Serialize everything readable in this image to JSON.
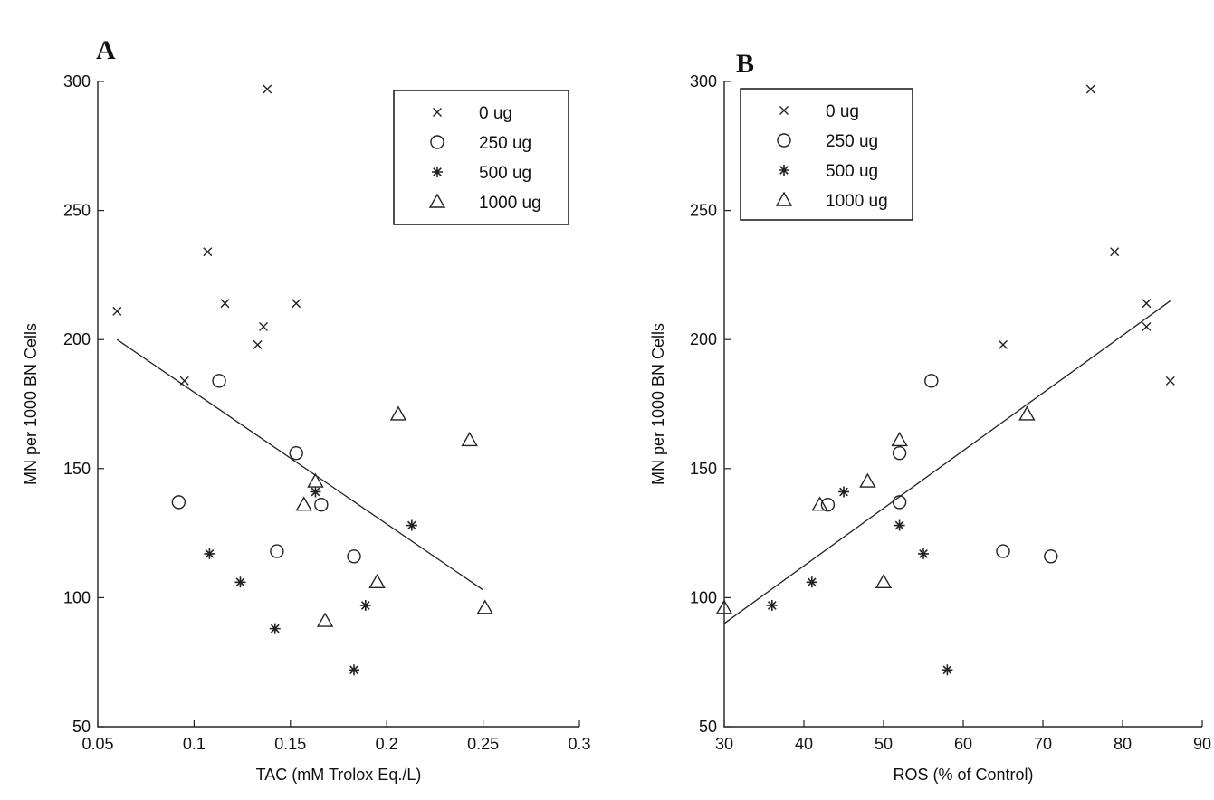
{
  "chart_data": [
    {
      "type": "scatter",
      "panel": "A",
      "xlabel": "TAC (mM Trolox Eq./L)",
      "ylabel": "MN per 1000 BN Cells",
      "xlim": [
        0.05,
        0.3
      ],
      "ylim": [
        50,
        300
      ],
      "xticks": [
        "0.05",
        "0.1",
        "0.15",
        "0.2",
        "0.25",
        "0.3"
      ],
      "yticks": [
        "50",
        "100",
        "150",
        "200",
        "250",
        "300"
      ],
      "grid": false,
      "legend_position": "top-right",
      "series": [
        {
          "name": "0 ug",
          "marker": "x",
          "x": [
            0.06,
            0.095,
            0.107,
            0.116,
            0.133,
            0.136,
            0.138,
            0.153
          ],
          "y": [
            211,
            184,
            234,
            214,
            198,
            205,
            297,
            214
          ]
        },
        {
          "name": "250 ug",
          "marker": "circle",
          "x": [
            0.092,
            0.113,
            0.143,
            0.153,
            0.166,
            0.183
          ],
          "y": [
            137,
            184,
            118,
            156,
            136,
            116
          ]
        },
        {
          "name": "500 ug",
          "marker": "star",
          "x": [
            0.108,
            0.124,
            0.142,
            0.163,
            0.183,
            0.189,
            0.213
          ],
          "y": [
            117,
            106,
            88,
            141,
            72,
            97,
            128
          ]
        },
        {
          "name": "1000 ug",
          "marker": "triangle",
          "x": [
            0.157,
            0.163,
            0.168,
            0.195,
            0.206,
            0.243,
            0.251
          ],
          "y": [
            136,
            145,
            91,
            106,
            171,
            161,
            96
          ]
        }
      ],
      "fit_line": {
        "x": [
          0.06,
          0.25
        ],
        "y": [
          200,
          103
        ]
      }
    },
    {
      "type": "scatter",
      "panel": "B",
      "xlabel": "ROS (% of Control)",
      "ylabel": "MN per 1000 BN Cells",
      "xlim": [
        30,
        90
      ],
      "ylim": [
        50,
        300
      ],
      "xticks": [
        "30",
        "40",
        "50",
        "60",
        "70",
        "80",
        "90"
      ],
      "yticks": [
        "50",
        "100",
        "150",
        "200",
        "250",
        "300"
      ],
      "grid": false,
      "legend_position": "top-left",
      "series": [
        {
          "name": "0 ug",
          "marker": "x",
          "x": [
            65,
            76,
            79,
            83,
            83,
            86
          ],
          "y": [
            198,
            297,
            234,
            214,
            205,
            184
          ]
        },
        {
          "name": "250 ug",
          "marker": "circle",
          "x": [
            43,
            52,
            52,
            56,
            65,
            71
          ],
          "y": [
            136,
            156,
            137,
            184,
            118,
            116
          ]
        },
        {
          "name": "500 ug",
          "marker": "star",
          "x": [
            36,
            41,
            45,
            52,
            55,
            58
          ],
          "y": [
            97,
            106,
            141,
            128,
            117,
            72
          ]
        },
        {
          "name": "1000 ug",
          "marker": "triangle",
          "x": [
            30,
            42,
            48,
            50,
            52,
            68
          ],
          "y": [
            96,
            136,
            145,
            106,
            161,
            171
          ]
        }
      ],
      "fit_line": {
        "x": [
          30,
          86
        ],
        "y": [
          90,
          215
        ]
      }
    }
  ]
}
